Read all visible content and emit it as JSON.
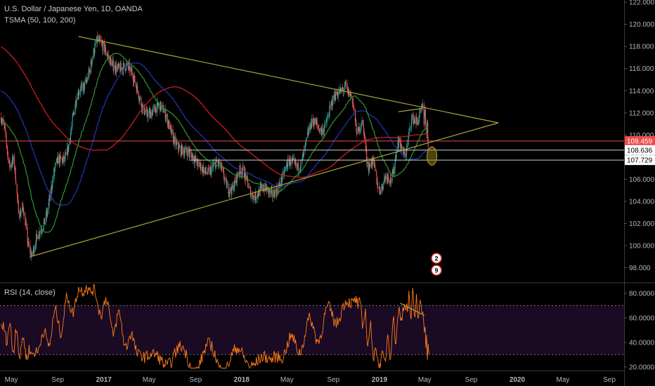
{
  "header": {
    "title": "U.S. Dollar / Japanese Yen, 1D, OANDA",
    "indicator": "TSMA (50, 100, 200)",
    "rsi_label": "RSI (14, close)"
  },
  "chart_data": {
    "type": "candlestick",
    "symbol": "USDJPY",
    "interval": "1D",
    "source": "OANDA",
    "x_axis": {
      "ticks": [
        {
          "label": "May",
          "date": "2016-05-01"
        },
        {
          "label": "Sep",
          "date": "2016-09-01"
        },
        {
          "label": "2017",
          "date": "2017-01-01"
        },
        {
          "label": "May",
          "date": "2017-05-01"
        },
        {
          "label": "Sep",
          "date": "2017-09-01"
        },
        {
          "label": "2018",
          "date": "2018-01-01"
        },
        {
          "label": "May",
          "date": "2018-05-01"
        },
        {
          "label": "Sep",
          "date": "2018-09-01"
        },
        {
          "label": "2019",
          "date": "2019-01-01"
        },
        {
          "label": "May",
          "date": "2019-05-01"
        },
        {
          "label": "Sep",
          "date": "2019-09-01"
        },
        {
          "label": "2020",
          "date": "2020-01-01"
        },
        {
          "label": "May",
          "date": "2020-05-01"
        },
        {
          "label": "Sep",
          "date": "2020-09-01"
        }
      ]
    },
    "price_axis": {
      "range": [
        96.7,
        122.2
      ],
      "ticks": [
        "122.000",
        "120.000",
        "118.000",
        "116.000",
        "114.000",
        "112.000",
        "110.000",
        "108.000",
        "106.000",
        "104.000",
        "102.000",
        "100.000",
        "98.000"
      ]
    },
    "rsi_axis": {
      "range": [
        17,
        88
      ],
      "ticks": [
        "80.0000",
        "60.0000",
        "40.0000",
        "20.0000"
      ],
      "upper_band": 70,
      "lower_band": 30
    },
    "price_labels": [
      {
        "text": "109.459",
        "value": 109.459,
        "color": "#f04a4a"
      },
      {
        "text": "108.636",
        "value": 108.636,
        "color": "#000000"
      },
      {
        "text": "107.729",
        "value": 107.729,
        "color": "#000000"
      }
    ],
    "key_points": [
      {
        "date": "2016-06-24",
        "value": 99.0
      },
      {
        "date": "2016-12-15",
        "value": 118.6
      },
      {
        "date": "2017-09-08",
        "value": 107.3
      },
      {
        "date": "2018-03-23",
        "value": 104.6
      },
      {
        "date": "2018-10-04",
        "value": 114.5
      },
      {
        "date": "2019-01-03",
        "value": 104.9
      },
      {
        "date": "2019-04-24",
        "value": 112.4
      },
      {
        "date": "2019-05-13",
        "value": 109.2
      }
    ],
    "trendlines": [
      {
        "from": {
          "date": "2016-06-20",
          "value": 99.0
        },
        "to": {
          "date": "2019-11-12",
          "value": 111.1
        },
        "color": "#a8a53c"
      },
      {
        "from": {
          "date": "2016-10-26",
          "value": 118.9
        },
        "to": {
          "date": "2019-11-12",
          "value": 111.1
        },
        "color": "#a8a53c"
      },
      {
        "from": {
          "date": "2019-02-20",
          "value": 112.1
        },
        "to": {
          "date": "2019-04-25",
          "value": 112.4
        },
        "color": "#a8a53c"
      }
    ],
    "horizontal_lines": [
      {
        "value": 109.459,
        "from_date": "2016-04-01",
        "color": "#f04a4a"
      },
      {
        "value": 108.636,
        "from_date": "2017-08-15",
        "color": "#cfcfcf"
      },
      {
        "value": 107.729,
        "from_date": "2017-08-15",
        "color": "#cfcfcf"
      }
    ],
    "rsi_key_points": [
      {
        "date": "2016-06-24",
        "value": 30
      },
      {
        "date": "2016-11-15",
        "value": 86
      },
      {
        "date": "2017-04-15",
        "value": 28
      },
      {
        "date": "2018-03-23",
        "value": 26
      },
      {
        "date": "2018-11-01",
        "value": 75
      },
      {
        "date": "2019-01-03",
        "value": 21
      },
      {
        "date": "2019-03-10",
        "value": 71
      },
      {
        "date": "2019-04-24",
        "value": 66
      },
      {
        "date": "2019-05-13",
        "value": 27
      }
    ],
    "rsi_trendline": {
      "from": {
        "date": "2019-02-25",
        "value": 72
      },
      "to": {
        "date": "2019-04-30",
        "value": 62
      }
    },
    "moving_averages": [
      {
        "name": "SMA 50",
        "color": "#2e8b2e"
      },
      {
        "name": "SMA 100",
        "color": "#2233aa"
      },
      {
        "name": "SMA 200",
        "color": "#c41f1f"
      }
    ],
    "event_badges": [
      "2",
      "9"
    ],
    "colors": {
      "up": "#26a69a",
      "down": "#ef5350",
      "trend": "#a8a53c",
      "rsi": "#ff7a1a",
      "rsi_fill": "#1a0a24"
    }
  }
}
